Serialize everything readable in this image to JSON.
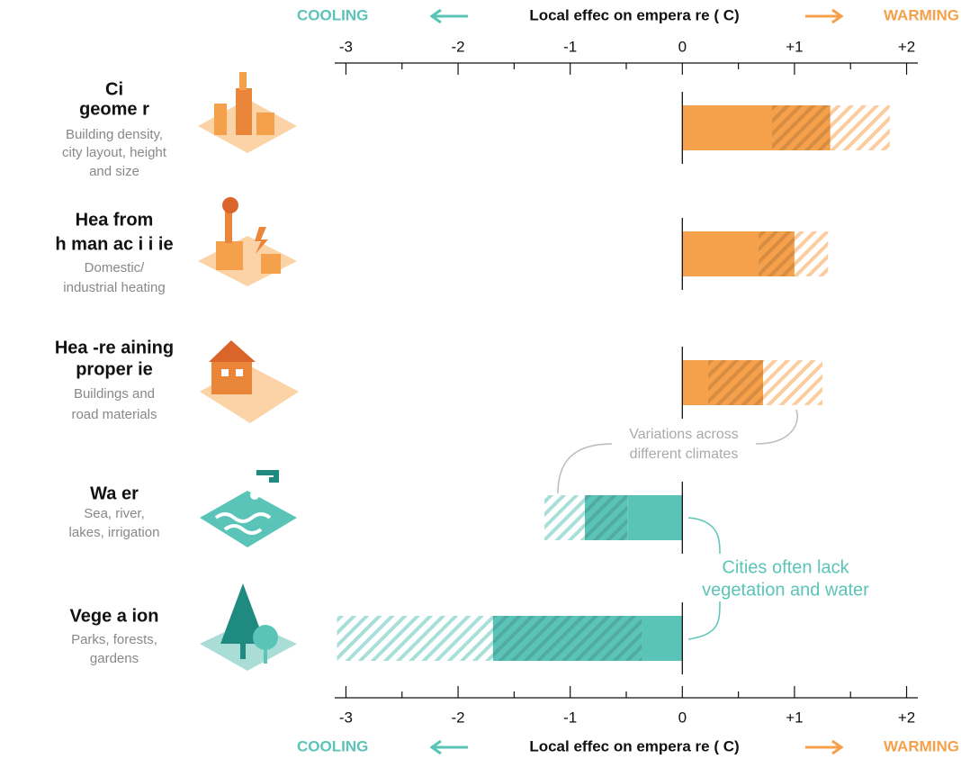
{
  "chart_data": {
    "type": "range-bar",
    "header": {
      "left": "COOLING",
      "center": "Local effec on empera re ( C)",
      "right": "WARMING"
    },
    "header_colors": {
      "left": "#5bc4b8",
      "right": "#f5a04a"
    },
    "rows": [
      {
        "title": [
          "Ci",
          "geome r"
        ],
        "subtitle": [
          "Building density,",
          "city layout, height",
          "and size"
        ],
        "color": "#f5a04a"
      },
      {
        "title": [
          "Hea from",
          "h man ac i i ie"
        ],
        "subtitle": [
          "Domestic/",
          "industrial heating"
        ],
        "color": "#f5a04a"
      },
      {
        "title": [
          "Hea -re aining",
          "proper ie"
        ],
        "subtitle": [
          "Buildings and",
          "road materials"
        ],
        "color": "#f5a04a"
      },
      {
        "title": [
          "Wa er"
        ],
        "subtitle": [
          "Sea, river,",
          "lakes, irrigation"
        ],
        "color": "#5bc4b8"
      },
      {
        "title": [
          "Vege a ion"
        ],
        "subtitle": [
          "Parks, forests,",
          "gardens"
        ],
        "color": "#5bc4b8"
      }
    ],
    "series": [
      {
        "style": "solid",
        "values": [
          0.8,
          0.68,
          0.23,
          -0.49,
          -0.36
        ]
      },
      {
        "style": "hatch-dark",
        "values": [
          0.52,
          0.32,
          0.49,
          -0.38,
          -1.33
        ]
      },
      {
        "style": "hatch-light",
        "values": [
          0.53,
          0.3,
          0.53,
          -0.36,
          -1.39
        ]
      }
    ],
    "xlim": [
      -3.1,
      2.1
    ],
    "xticks": [
      -3,
      -2,
      -1,
      0,
      {
        "value": 1,
        "label": "+1"
      },
      {
        "value": 2,
        "label": "+2"
      }
    ],
    "xminorticks": [
      -2.5,
      -1.5,
      -0.5,
      0.5,
      1.5
    ],
    "annotations": [
      {
        "text": [
          "Variations across",
          "different climates"
        ],
        "color": "#aaaaaa"
      },
      {
        "text": [
          "Cities often lack",
          "vegetation and water"
        ],
        "color": "#5bc4b8"
      }
    ]
  }
}
